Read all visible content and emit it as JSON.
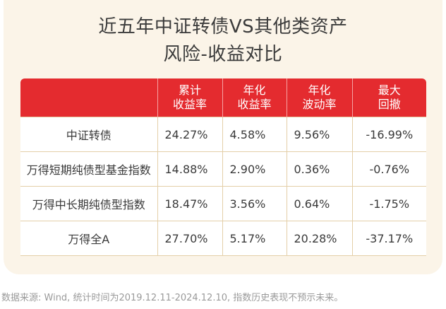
{
  "title": {
    "line1": "近五年中证转债VS其他类资产",
    "line2": "风险-收益对比"
  },
  "table": {
    "headers": [
      {
        "line1": "",
        "line2": ""
      },
      {
        "line1": "累计",
        "line2": "收益率"
      },
      {
        "line1": "年化",
        "line2": "收益率"
      },
      {
        "line1": "年化",
        "line2": "波动率"
      },
      {
        "line1": "最大",
        "line2": "回撤"
      }
    ],
    "rows": [
      {
        "name": "中证转债",
        "cumulative_return": "24.27%",
        "annualized_return": "4.58%",
        "annualized_volatility": "9.56%",
        "max_drawdown": "-16.99%"
      },
      {
        "name": "万得短期纯债型基金指数",
        "cumulative_return": "14.88%",
        "annualized_return": "2.90%",
        "annualized_volatility": "0.36%",
        "max_drawdown": "-0.76%"
      },
      {
        "name": "万得中长期纯债型指数",
        "cumulative_return": "18.47%",
        "annualized_return": "3.56%",
        "annualized_volatility": "0.64%",
        "max_drawdown": "-1.75%"
      },
      {
        "name": "万得全A",
        "cumulative_return": "27.70%",
        "annualized_return": "5.17%",
        "annualized_volatility": "20.28%",
        "max_drawdown": "-37.17%"
      }
    ]
  },
  "footnote": "数据来源: Wind, 统计时间为2019.12.11-2024.12.10, 指数历史表现不预示未来。",
  "colors": {
    "header_bg": "#e42b2f",
    "card_bg": "#fbf4e8",
    "border": "#e4cfa8"
  }
}
